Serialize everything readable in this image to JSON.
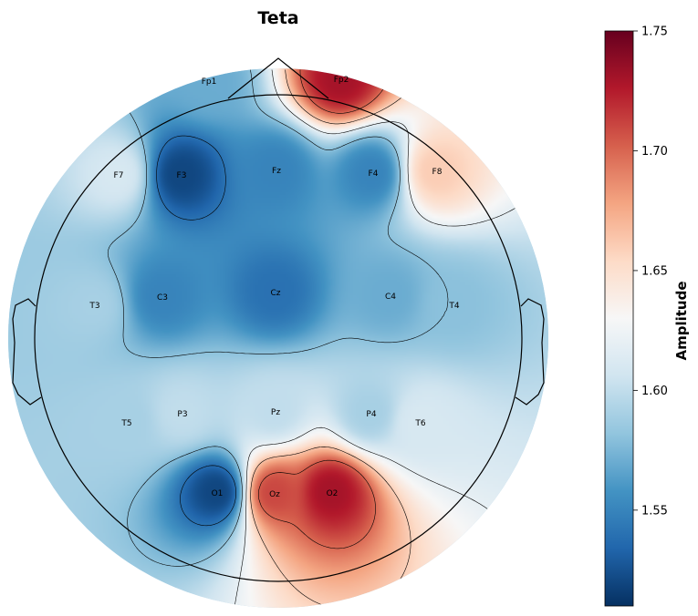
{
  "chart_data": {
    "type": "heatmap",
    "title": "Teta",
    "colorbar": {
      "label": "Amplitude",
      "range": [
        1.51,
        1.75
      ],
      "ticks": [
        "1.55",
        "1.60",
        "1.65",
        "1.70",
        "1.75"
      ],
      "colormap": "RdBu_r"
    },
    "electrodes": [
      {
        "name": "Fp1",
        "value": 1.57
      },
      {
        "name": "Fp2",
        "value": 1.73
      },
      {
        "name": "F7",
        "value": 1.61
      },
      {
        "name": "F3",
        "value": 1.52
      },
      {
        "name": "Fz",
        "value": 1.55
      },
      {
        "name": "F4",
        "value": 1.55
      },
      {
        "name": "F8",
        "value": 1.66
      },
      {
        "name": "T3",
        "value": 1.59
      },
      {
        "name": "C3",
        "value": 1.55
      },
      {
        "name": "Cz",
        "value": 1.54
      },
      {
        "name": "C4",
        "value": 1.57
      },
      {
        "name": "T4",
        "value": 1.58
      },
      {
        "name": "T5",
        "value": 1.59
      },
      {
        "name": "P3",
        "value": 1.6
      },
      {
        "name": "Pz",
        "value": 1.6
      },
      {
        "name": "P4",
        "value": 1.59
      },
      {
        "name": "T6",
        "value": 1.61
      },
      {
        "name": "O1",
        "value": 1.52
      },
      {
        "name": "Oz",
        "value": 1.71
      },
      {
        "name": "O2",
        "value": 1.73
      }
    ]
  }
}
